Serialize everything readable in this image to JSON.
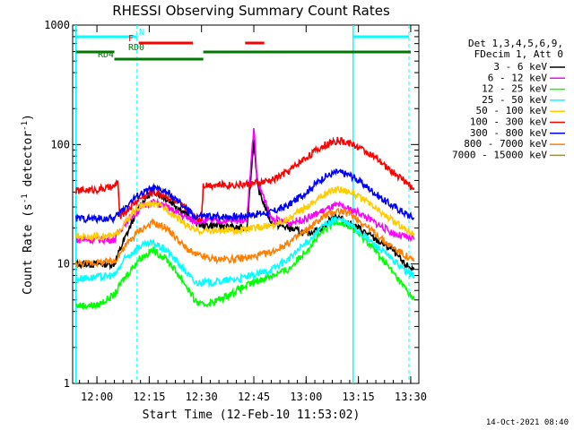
{
  "chart_data": {
    "type": "line",
    "title": "RHESSI Observing Summary Count Rates",
    "xlabel": "Start Time (12-Feb-10 11:53:02)",
    "ylabel_prefix": "Count Rate (s",
    "ylabel_sup1": "-1",
    "ylabel_mid": " detector",
    "ylabel_sup2": "-1",
    "ylabel_suffix": ")",
    "yscale": "log",
    "xlim": [
      "11:53:02",
      "13:32:20"
    ],
    "ylim": [
      1,
      1000
    ],
    "xticks": [
      {
        "t": "12:00",
        "label": "12:00"
      },
      {
        "t": "12:15",
        "label": "12:15"
      },
      {
        "t": "12:30",
        "label": "12:30"
      },
      {
        "t": "12:45",
        "label": "12:45"
      },
      {
        "t": "13:00",
        "label": "13:00"
      },
      {
        "t": "13:15",
        "label": "13:15"
      },
      {
        "t": "13:30",
        "label": "13:30"
      }
    ],
    "yticks": [
      {
        "v": 1,
        "label": "1"
      },
      {
        "v": 10,
        "label": "10"
      },
      {
        "v": 100,
        "label": "100"
      },
      {
        "v": 1000,
        "label": "1000"
      }
    ],
    "legend_header": [
      "Det 1,3,4,5,6,9,",
      "FDecim 1, Att 0"
    ],
    "legend_position": "top-right",
    "series": [
      {
        "name": "3 - 6 keV",
        "color": "#000000",
        "points": [
          [
            "11:54",
            10
          ],
          [
            "12:05",
            10
          ],
          [
            "12:07",
            14
          ],
          [
            "12:12",
            30
          ],
          [
            "12:15",
            38
          ],
          [
            "12:17",
            40
          ],
          [
            "12:22",
            32
          ],
          [
            "12:27",
            24
          ],
          [
            "12:30",
            21
          ],
          [
            "12:35",
            21
          ],
          [
            "12:40",
            20
          ],
          [
            "12:43",
            20
          ],
          [
            "12:45",
            110
          ],
          [
            "12:46",
            45
          ],
          [
            "12:50",
            22
          ],
          [
            "12:55",
            20
          ],
          [
            "13:00",
            18
          ],
          [
            "13:05",
            20
          ],
          [
            "13:08",
            26
          ],
          [
            "13:12",
            22
          ],
          [
            "13:15",
            20
          ],
          [
            "13:20",
            16
          ],
          [
            "13:25",
            13
          ],
          [
            "13:28",
            10
          ],
          [
            "13:31",
            9
          ]
        ]
      },
      {
        "name": "6 - 12 keV",
        "color": "#ff00ff",
        "points": [
          [
            "11:54",
            16
          ],
          [
            "12:05",
            16
          ],
          [
            "12:08",
            22
          ],
          [
            "12:13",
            30
          ],
          [
            "12:16",
            33
          ],
          [
            "12:20",
            30
          ],
          [
            "12:25",
            25
          ],
          [
            "12:28",
            23
          ],
          [
            "12:35",
            23
          ],
          [
            "12:40",
            23
          ],
          [
            "12:43",
            24
          ],
          [
            "12:45",
            140
          ],
          [
            "12:46",
            50
          ],
          [
            "12:50",
            24
          ],
          [
            "12:55",
            22
          ],
          [
            "13:00",
            24
          ],
          [
            "13:05",
            28
          ],
          [
            "13:09",
            31
          ],
          [
            "13:15",
            27
          ],
          [
            "13:20",
            22
          ],
          [
            "13:25",
            18
          ],
          [
            "13:31",
            16
          ]
        ]
      },
      {
        "name": "12 - 25 keV",
        "color": "#00ff00",
        "points": [
          [
            "11:54",
            4.5
          ],
          [
            "12:00",
            4.5
          ],
          [
            "12:05",
            5.5
          ],
          [
            "12:07",
            7
          ],
          [
            "12:12",
            11
          ],
          [
            "12:16",
            13
          ],
          [
            "12:20",
            11
          ],
          [
            "12:25",
            7
          ],
          [
            "12:28",
            5
          ],
          [
            "12:30",
            4.5
          ],
          [
            "12:35",
            5
          ],
          [
            "12:40",
            6
          ],
          [
            "12:45",
            7
          ],
          [
            "12:50",
            8
          ],
          [
            "12:55",
            9
          ],
          [
            "13:00",
            13
          ],
          [
            "13:05",
            19
          ],
          [
            "13:09",
            23
          ],
          [
            "13:13",
            20
          ],
          [
            "13:18",
            15
          ],
          [
            "13:23",
            10
          ],
          [
            "13:28",
            6.5
          ],
          [
            "13:31",
            5
          ]
        ]
      },
      {
        "name": "25 - 50 keV",
        "color": "#00ffff",
        "points": [
          [
            "11:54",
            7.5
          ],
          [
            "12:05",
            8
          ],
          [
            "12:08",
            11
          ],
          [
            "12:12",
            14
          ],
          [
            "12:16",
            15
          ],
          [
            "12:20",
            13
          ],
          [
            "12:25",
            9
          ],
          [
            "12:28",
            7
          ],
          [
            "12:33",
            7
          ],
          [
            "12:40",
            7.5
          ],
          [
            "12:45",
            8
          ],
          [
            "12:50",
            9
          ],
          [
            "12:55",
            11
          ],
          [
            "13:00",
            15
          ],
          [
            "13:05",
            21
          ],
          [
            "13:09",
            24
          ],
          [
            "13:13",
            21
          ],
          [
            "13:18",
            16
          ],
          [
            "13:23",
            12
          ],
          [
            "13:28",
            9
          ],
          [
            "13:31",
            8
          ]
        ]
      },
      {
        "name": "50 - 100 keV",
        "color": "#ffcc00",
        "points": [
          [
            "11:54",
            17
          ],
          [
            "12:05",
            17
          ],
          [
            "12:08",
            22
          ],
          [
            "12:12",
            30
          ],
          [
            "12:16",
            32
          ],
          [
            "12:20",
            29
          ],
          [
            "12:25",
            22
          ],
          [
            "12:28",
            19
          ],
          [
            "12:35",
            19
          ],
          [
            "12:40",
            19
          ],
          [
            "12:45",
            20
          ],
          [
            "12:50",
            21
          ],
          [
            "12:55",
            24
          ],
          [
            "13:00",
            30
          ],
          [
            "13:05",
            38
          ],
          [
            "13:09",
            43
          ],
          [
            "13:13",
            40
          ],
          [
            "13:18",
            32
          ],
          [
            "13:23",
            25
          ],
          [
            "13:28",
            20
          ],
          [
            "13:31",
            18
          ]
        ]
      },
      {
        "name": "100 - 300 keV",
        "color": "#ff0000",
        "points": [
          [
            "11:54",
            41
          ],
          [
            "12:00",
            42
          ],
          [
            "12:05",
            44
          ],
          [
            "12:06",
            50
          ],
          [
            "12:06.5",
            25
          ],
          [
            "12:08",
            27
          ],
          [
            "12:12",
            35
          ],
          [
            "12:16",
            40
          ],
          [
            "12:20",
            37
          ],
          [
            "12:25",
            30
          ],
          [
            "12:29",
            24
          ],
          [
            "12:30",
            24
          ],
          [
            "12:30.5",
            46
          ],
          [
            "12:35",
            46
          ],
          [
            "12:40",
            46
          ],
          [
            "12:45",
            47
          ],
          [
            "12:50",
            50
          ],
          [
            "12:55",
            60
          ],
          [
            "13:00",
            78
          ],
          [
            "13:05",
            98
          ],
          [
            "13:09",
            108
          ],
          [
            "13:13",
            102
          ],
          [
            "13:18",
            85
          ],
          [
            "13:23",
            65
          ],
          [
            "13:28",
            50
          ],
          [
            "13:31",
            42
          ]
        ]
      },
      {
        "name": "300 - 800 keV",
        "color": "#0000ff",
        "points": [
          [
            "11:54",
            24
          ],
          [
            "12:05",
            24
          ],
          [
            "12:08",
            30
          ],
          [
            "12:12",
            38
          ],
          [
            "12:16",
            43
          ],
          [
            "12:20",
            40
          ],
          [
            "12:25",
            30
          ],
          [
            "12:28",
            25
          ],
          [
            "12:35",
            25
          ],
          [
            "12:40",
            25
          ],
          [
            "12:45",
            26
          ],
          [
            "12:50",
            27
          ],
          [
            "12:55",
            31
          ],
          [
            "13:00",
            40
          ],
          [
            "13:05",
            53
          ],
          [
            "13:09",
            59
          ],
          [
            "13:13",
            55
          ],
          [
            "13:18",
            43
          ],
          [
            "13:23",
            33
          ],
          [
            "13:28",
            27
          ],
          [
            "13:31",
            24
          ]
        ]
      },
      {
        "name": "800 - 7000 keV",
        "color": "#ff8000",
        "points": [
          [
            "11:54",
            10
          ],
          [
            "12:05",
            10.5
          ],
          [
            "12:08",
            14
          ],
          [
            "12:12",
            19
          ],
          [
            "12:16",
            22
          ],
          [
            "12:20",
            20
          ],
          [
            "12:25",
            14
          ],
          [
            "12:28",
            12
          ],
          [
            "12:33",
            11
          ],
          [
            "12:40",
            11
          ],
          [
            "12:45",
            11.5
          ],
          [
            "12:50",
            12.5
          ],
          [
            "12:55",
            15
          ],
          [
            "13:00",
            19
          ],
          [
            "13:05",
            25
          ],
          [
            "13:09",
            28
          ],
          [
            "13:13",
            26
          ],
          [
            "13:18",
            20
          ],
          [
            "13:23",
            15
          ],
          [
            "13:28",
            12
          ],
          [
            "13:31",
            10.5
          ]
        ]
      },
      {
        "name": "7000 - 15000 keV",
        "color": "#999900",
        "points": []
      }
    ],
    "annotations": {
      "vlines_solid": [
        "11:54:00",
        "13:13:30"
      ],
      "vlines_dashed": [
        "12:11:30",
        "13:29:30"
      ],
      "bars": [
        {
          "label": "N",
          "color": "#00ffff",
          "row": "N",
          "segments": [
            [
              "11:54:00",
              "12:11:30"
            ],
            [
              "13:13:30",
              "13:29:30"
            ]
          ]
        },
        {
          "label": "F",
          "color": "#ff0000",
          "row": "F",
          "segments": [
            [
              "12:12:00",
              "12:27:30"
            ],
            [
              "12:42:30",
              "12:48:00"
            ]
          ]
        },
        {
          "label": "RD0",
          "color": "#007700",
          "row": "RD0",
          "segments": [
            [
              "11:54:00",
              "12:05:00"
            ],
            [
              "12:30:30",
              "13:30:00"
            ]
          ]
        },
        {
          "label": "RD4",
          "color": "#007700",
          "row": "RD4",
          "segments": [
            [
              "12:05:00",
              "12:30:30"
            ]
          ]
        }
      ]
    }
  },
  "colors": {
    "background": "#ffffff",
    "axes": "#000000",
    "solid_vline": "#00ffff",
    "dashed_vline": "#00ffff"
  },
  "stamp": "14-Oct-2021 08:40"
}
